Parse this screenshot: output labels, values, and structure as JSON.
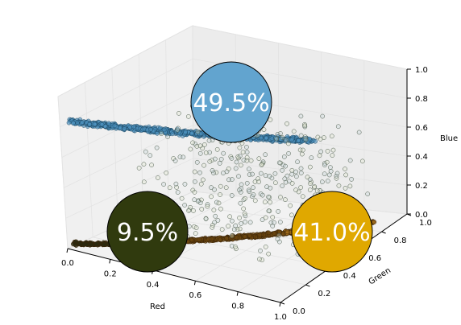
{
  "chart_data": {
    "type": "scatter3d",
    "xlabel": "Red",
    "ylabel": "Green",
    "zlabel": "Blue",
    "xlim": [
      0.0,
      1.0
    ],
    "ylim": [
      0.0,
      1.0
    ],
    "zlim": [
      0.0,
      1.0
    ],
    "xticks": [
      "0.0",
      "0.2",
      "0.4",
      "0.6",
      "0.8",
      "1.0"
    ],
    "yticks": [
      "0.0",
      "0.2",
      "0.4",
      "0.6",
      "0.8",
      "1.0"
    ],
    "zticks": [
      "0.0",
      "0.2",
      "0.4",
      "0.6",
      "0.8",
      "1.0"
    ],
    "grid": true,
    "clusters": [
      {
        "percent_label": "49.5%",
        "share": 0.495,
        "center": [
          0.84,
          0.42,
          0.77
        ],
        "color": "#62a4cf",
        "label_color": "#ffffff"
      },
      {
        "percent_label": "9.5%",
        "share": 0.095,
        "center": [
          0.02,
          0.07,
          0.0
        ],
        "color": "#303a0e",
        "label_color": "#ffffff"
      },
      {
        "percent_label": "41.0%",
        "share": 0.41,
        "center": [
          0.82,
          0.86,
          0.07
        ],
        "color": "#e0a800",
        "label_color": "#ffffff"
      }
    ],
    "point_clouds": [
      {
        "name": "blue-band",
        "edge_color": "#1d4a66",
        "fill_color": "#4f93bf",
        "approx_points": 800
      },
      {
        "name": "dark-to-orange-band",
        "edge_color": "#3a2408",
        "fill_color": "#8a5a16",
        "approx_points": 900
      },
      {
        "name": "transition-scatter",
        "edge_color": "#4a5a4a",
        "fill_color": "#cfd8cf",
        "approx_points": 350
      }
    ]
  }
}
